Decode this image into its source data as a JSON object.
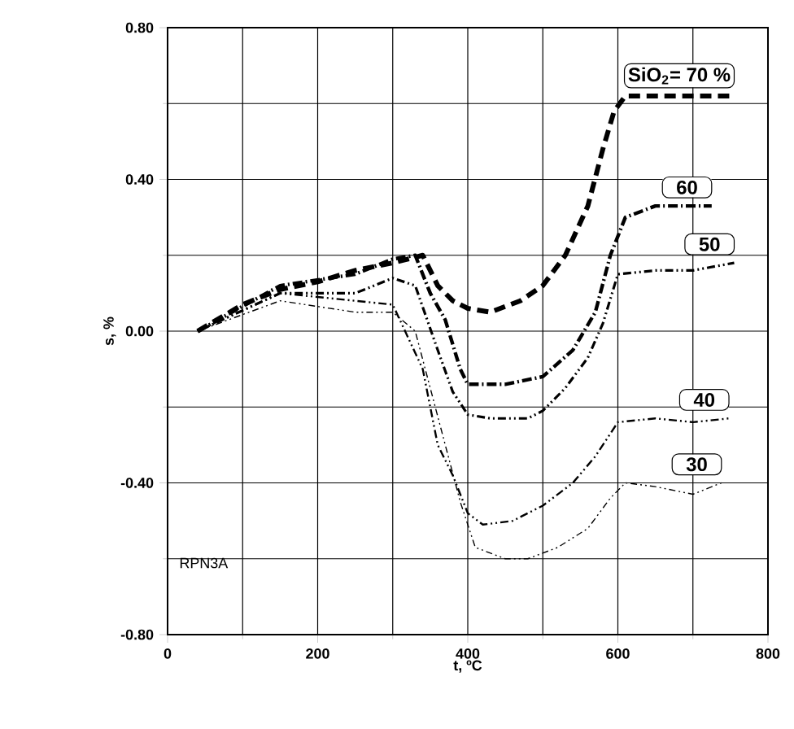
{
  "chart_data": {
    "type": "line",
    "xlabel": "t, ºC",
    "ylabel": "s, %",
    "xlim": [
      0,
      800
    ],
    "ylim": [
      -0.8,
      0.8
    ],
    "xticks": [
      0,
      200,
      400,
      600,
      800
    ],
    "yticks": [
      {
        "value": 0.8,
        "label": "0.80"
      },
      {
        "value": 0.4,
        "label": "0.40"
      },
      {
        "value": 0,
        "label": "0.00"
      },
      {
        "value": -0.4,
        "label": "-0.40"
      },
      {
        "value": -0.8,
        "label": "-0.80"
      }
    ],
    "grid": true,
    "marker": "none",
    "annotations": [
      "RPN3A",
      {
        "text": "SiO$_{2}$= 70 %",
        "x": 755,
        "y": 0.62
      },
      {
        "text": "60",
        "x": 725,
        "y": 0.33
      },
      {
        "text": "50",
        "x": 755,
        "y": 0.18
      },
      {
        "text": "40",
        "x": 748,
        "y": -0.23
      },
      {
        "text": "30",
        "x": 738,
        "y": -0.4
      }
    ],
    "series": [
      {
        "color": "#000000",
        "line_style": "dashed",
        "x": [
          40,
          100,
          150,
          200,
          250,
          300,
          340,
          360,
          380,
          400,
          430,
          470,
          500,
          530,
          560,
          580,
          595,
          610,
          650,
          700,
          755
        ],
        "values": [
          0,
          0.07,
          0.11,
          0.13,
          0.16,
          0.18,
          0.2,
          0.12,
          0.08,
          0.06,
          0.05,
          0.08,
          0.12,
          0.2,
          0.33,
          0.48,
          0.58,
          0.62,
          0.62,
          0.62,
          0.62
        ]
      },
      {
        "color": "#000000",
        "line_style": "dashed",
        "x": [
          40,
          150,
          250,
          300,
          330,
          350,
          370,
          390,
          400,
          450,
          500,
          540,
          570,
          590,
          610,
          650,
          700,
          725
        ],
        "values": [
          0,
          0.12,
          0.15,
          0.19,
          0.2,
          0.1,
          0.03,
          -0.1,
          -0.14,
          -0.14,
          -0.12,
          -0.05,
          0.05,
          0.2,
          0.3,
          0.33,
          0.33,
          0.33
        ]
      },
      {
        "color": "#000000",
        "line_style": "dashed",
        "x": [
          40,
          150,
          250,
          300,
          330,
          360,
          380,
          400,
          430,
          480,
          500,
          530,
          560,
          580,
          600,
          650,
          700,
          755
        ],
        "values": [
          0,
          0.1,
          0.1,
          0.14,
          0.12,
          -0.05,
          -0.16,
          -0.22,
          -0.23,
          -0.23,
          -0.21,
          -0.15,
          -0.07,
          0.02,
          0.15,
          0.16,
          0.16,
          0.18
        ]
      },
      {
        "color": "#000000",
        "line_style": "dashed",
        "x": [
          40,
          150,
          250,
          300,
          340,
          360,
          380,
          400,
          420,
          460,
          500,
          540,
          570,
          600,
          650,
          700,
          748
        ],
        "values": [
          0,
          0.1,
          0.08,
          0.07,
          -0.1,
          -0.3,
          -0.38,
          -0.48,
          -0.51,
          -0.5,
          -0.46,
          -0.4,
          -0.33,
          -0.24,
          -0.23,
          -0.24,
          -0.23
        ]
      },
      {
        "color": "#000000",
        "line_style": "dashed",
        "x": [
          40,
          150,
          250,
          300,
          330,
          350,
          370,
          390,
          410,
          450,
          480,
          520,
          560,
          590,
          610,
          650,
          700,
          738
        ],
        "values": [
          0,
          0.08,
          0.05,
          0.05,
          0,
          -0.15,
          -0.3,
          -0.45,
          -0.57,
          -0.6,
          -0.6,
          -0.57,
          -0.52,
          -0.44,
          -0.4,
          -0.41,
          -0.43,
          -0.4
        ]
      }
    ]
  }
}
